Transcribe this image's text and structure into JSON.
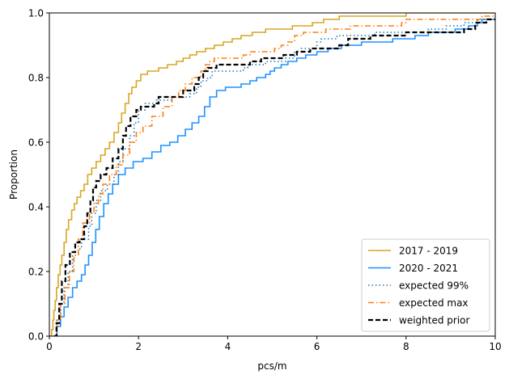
{
  "chart_data": {
    "type": "line",
    "subtype": "ecdf-step",
    "xlabel": "pcs/m",
    "ylabel": "Proportion",
    "xlim": [
      0,
      10
    ],
    "ylim": [
      0,
      1
    ],
    "xticks": [
      "0",
      "2",
      "4",
      "6",
      "8",
      "10"
    ],
    "xtick_values": [
      0,
      2,
      4,
      6,
      8,
      10
    ],
    "yticks": [
      "0.0",
      "0.2",
      "0.4",
      "0.6",
      "0.8",
      "1.0"
    ],
    "ytick_values": [
      0,
      0.2,
      0.4,
      0.6,
      0.8,
      1.0
    ],
    "grid": false,
    "legend_position": "lower-right",
    "series": [
      {
        "name": "2017 - 2019",
        "color": "#DAA520",
        "dash": "solid",
        "width": 1.6,
        "points": [
          [
            0.0,
            0.0
          ],
          [
            0.05,
            0.02
          ],
          [
            0.08,
            0.05
          ],
          [
            0.1,
            0.08
          ],
          [
            0.13,
            0.11
          ],
          [
            0.16,
            0.15
          ],
          [
            0.2,
            0.19
          ],
          [
            0.24,
            0.22
          ],
          [
            0.28,
            0.25
          ],
          [
            0.33,
            0.29
          ],
          [
            0.38,
            0.33
          ],
          [
            0.43,
            0.36
          ],
          [
            0.5,
            0.39
          ],
          [
            0.56,
            0.41
          ],
          [
            0.62,
            0.43
          ],
          [
            0.7,
            0.45
          ],
          [
            0.78,
            0.47
          ],
          [
            0.86,
            0.5
          ],
          [
            0.95,
            0.52
          ],
          [
            1.05,
            0.54
          ],
          [
            1.15,
            0.56
          ],
          [
            1.25,
            0.58
          ],
          [
            1.35,
            0.6
          ],
          [
            1.45,
            0.63
          ],
          [
            1.55,
            0.66
          ],
          [
            1.62,
            0.69
          ],
          [
            1.7,
            0.72
          ],
          [
            1.78,
            0.75
          ],
          [
            1.85,
            0.77
          ],
          [
            1.95,
            0.79
          ],
          [
            2.05,
            0.81
          ],
          [
            2.2,
            0.82
          ],
          [
            2.45,
            0.83
          ],
          [
            2.65,
            0.84
          ],
          [
            2.85,
            0.85
          ],
          [
            3.0,
            0.86
          ],
          [
            3.15,
            0.87
          ],
          [
            3.3,
            0.88
          ],
          [
            3.5,
            0.89
          ],
          [
            3.7,
            0.9
          ],
          [
            3.9,
            0.91
          ],
          [
            4.1,
            0.92
          ],
          [
            4.3,
            0.93
          ],
          [
            4.55,
            0.94
          ],
          [
            4.85,
            0.95
          ],
          [
            5.45,
            0.96
          ],
          [
            5.9,
            0.97
          ],
          [
            6.15,
            0.98
          ],
          [
            6.5,
            0.99
          ],
          [
            7.9,
            0.99
          ],
          [
            8.0,
            1.0
          ],
          [
            10.0,
            1.0
          ]
        ]
      },
      {
        "name": "2020 - 2021",
        "color": "#1E90FF",
        "dash": "solid",
        "width": 1.6,
        "points": [
          [
            0.1,
            0.0
          ],
          [
            0.17,
            0.03
          ],
          [
            0.25,
            0.06
          ],
          [
            0.33,
            0.09
          ],
          [
            0.42,
            0.12
          ],
          [
            0.52,
            0.15
          ],
          [
            0.62,
            0.17
          ],
          [
            0.72,
            0.19
          ],
          [
            0.8,
            0.22
          ],
          [
            0.88,
            0.25
          ],
          [
            0.96,
            0.29
          ],
          [
            1.04,
            0.33
          ],
          [
            1.12,
            0.37
          ],
          [
            1.22,
            0.41
          ],
          [
            1.32,
            0.44
          ],
          [
            1.42,
            0.47
          ],
          [
            1.55,
            0.5
          ],
          [
            1.7,
            0.52
          ],
          [
            1.88,
            0.54
          ],
          [
            2.1,
            0.55
          ],
          [
            2.3,
            0.57
          ],
          [
            2.5,
            0.59
          ],
          [
            2.7,
            0.6
          ],
          [
            2.88,
            0.62
          ],
          [
            3.05,
            0.64
          ],
          [
            3.2,
            0.66
          ],
          [
            3.35,
            0.68
          ],
          [
            3.48,
            0.71
          ],
          [
            3.6,
            0.74
          ],
          [
            3.75,
            0.76
          ],
          [
            3.95,
            0.77
          ],
          [
            4.3,
            0.78
          ],
          [
            4.5,
            0.79
          ],
          [
            4.65,
            0.8
          ],
          [
            4.85,
            0.81
          ],
          [
            4.95,
            0.82
          ],
          [
            5.05,
            0.83
          ],
          [
            5.2,
            0.84
          ],
          [
            5.35,
            0.85
          ],
          [
            5.55,
            0.86
          ],
          [
            5.75,
            0.87
          ],
          [
            6.0,
            0.88
          ],
          [
            6.25,
            0.89
          ],
          [
            6.55,
            0.9
          ],
          [
            7.0,
            0.91
          ],
          [
            7.7,
            0.92
          ],
          [
            8.2,
            0.93
          ],
          [
            8.5,
            0.94
          ],
          [
            9.1,
            0.95
          ],
          [
            9.4,
            0.96
          ],
          [
            9.6,
            0.97
          ],
          [
            9.7,
            0.98
          ],
          [
            10.0,
            0.98
          ]
        ]
      },
      {
        "name": "expected 99%",
        "color": "#1F77B4",
        "dash": "dotted",
        "width": 1.6,
        "points": [
          [
            0.1,
            0.0
          ],
          [
            0.17,
            0.05
          ],
          [
            0.25,
            0.1
          ],
          [
            0.33,
            0.15
          ],
          [
            0.42,
            0.2
          ],
          [
            0.52,
            0.25
          ],
          [
            0.65,
            0.27
          ],
          [
            0.72,
            0.3
          ],
          [
            0.88,
            0.34
          ],
          [
            0.95,
            0.38
          ],
          [
            1.05,
            0.42
          ],
          [
            1.15,
            0.45
          ],
          [
            1.3,
            0.47
          ],
          [
            1.45,
            0.5
          ],
          [
            1.55,
            0.54
          ],
          [
            1.65,
            0.58
          ],
          [
            1.8,
            0.62
          ],
          [
            1.9,
            0.66
          ],
          [
            2.0,
            0.7
          ],
          [
            2.15,
            0.72
          ],
          [
            2.4,
            0.73
          ],
          [
            2.75,
            0.74
          ],
          [
            3.15,
            0.75
          ],
          [
            3.3,
            0.77
          ],
          [
            3.4,
            0.79
          ],
          [
            3.55,
            0.8
          ],
          [
            3.65,
            0.82
          ],
          [
            4.3,
            0.82
          ],
          [
            4.35,
            0.83
          ],
          [
            4.45,
            0.84
          ],
          [
            4.85,
            0.85
          ],
          [
            5.3,
            0.86
          ],
          [
            5.5,
            0.88
          ],
          [
            5.65,
            0.89
          ],
          [
            6.0,
            0.91
          ],
          [
            6.1,
            0.92
          ],
          [
            6.45,
            0.93
          ],
          [
            7.05,
            0.93
          ],
          [
            7.3,
            0.94
          ],
          [
            8.0,
            0.94
          ],
          [
            8.5,
            0.95
          ],
          [
            8.9,
            0.96
          ],
          [
            9.3,
            0.97
          ],
          [
            9.6,
            0.98
          ],
          [
            10.0,
            0.98
          ]
        ]
      },
      {
        "name": "expected max",
        "color": "#FF7F0E",
        "dash": "dashdot",
        "width": 1.6,
        "points": [
          [
            0.1,
            0.0
          ],
          [
            0.17,
            0.05
          ],
          [
            0.25,
            0.1
          ],
          [
            0.35,
            0.15
          ],
          [
            0.45,
            0.2
          ],
          [
            0.55,
            0.25
          ],
          [
            0.65,
            0.3
          ],
          [
            0.75,
            0.35
          ],
          [
            0.9,
            0.38
          ],
          [
            1.0,
            0.41
          ],
          [
            1.1,
            0.44
          ],
          [
            1.2,
            0.47
          ],
          [
            1.35,
            0.5
          ],
          [
            1.5,
            0.53
          ],
          [
            1.65,
            0.56
          ],
          [
            1.8,
            0.6
          ],
          [
            1.95,
            0.63
          ],
          [
            2.1,
            0.65
          ],
          [
            2.3,
            0.68
          ],
          [
            2.55,
            0.71
          ],
          [
            2.75,
            0.74
          ],
          [
            2.9,
            0.76
          ],
          [
            3.05,
            0.78
          ],
          [
            3.2,
            0.8
          ],
          [
            3.4,
            0.82
          ],
          [
            3.5,
            0.84
          ],
          [
            3.6,
            0.85
          ],
          [
            3.7,
            0.86
          ],
          [
            4.1,
            0.86
          ],
          [
            4.35,
            0.87
          ],
          [
            4.5,
            0.88
          ],
          [
            4.9,
            0.88
          ],
          [
            5.05,
            0.89
          ],
          [
            5.2,
            0.9
          ],
          [
            5.35,
            0.91
          ],
          [
            5.5,
            0.93
          ],
          [
            5.7,
            0.94
          ],
          [
            6.2,
            0.95
          ],
          [
            6.75,
            0.96
          ],
          [
            7.0,
            0.96
          ],
          [
            7.9,
            0.97
          ],
          [
            8.0,
            0.98
          ],
          [
            9.7,
            0.99
          ],
          [
            10.0,
            0.99
          ]
        ]
      },
      {
        "name": "weighted prior",
        "color": "#000000",
        "dash": "dashed",
        "width": 2.2,
        "points": [
          [
            0.1,
            0.0
          ],
          [
            0.16,
            0.04
          ],
          [
            0.22,
            0.1
          ],
          [
            0.28,
            0.17
          ],
          [
            0.36,
            0.22
          ],
          [
            0.46,
            0.26
          ],
          [
            0.58,
            0.29
          ],
          [
            0.68,
            0.3
          ],
          [
            0.78,
            0.34
          ],
          [
            0.85,
            0.38
          ],
          [
            0.92,
            0.42
          ],
          [
            0.98,
            0.46
          ],
          [
            1.05,
            0.48
          ],
          [
            1.15,
            0.5
          ],
          [
            1.28,
            0.52
          ],
          [
            1.42,
            0.55
          ],
          [
            1.55,
            0.58
          ],
          [
            1.65,
            0.62
          ],
          [
            1.72,
            0.65
          ],
          [
            1.82,
            0.68
          ],
          [
            1.95,
            0.7
          ],
          [
            2.05,
            0.71
          ],
          [
            2.35,
            0.72
          ],
          [
            2.45,
            0.74
          ],
          [
            2.85,
            0.74
          ],
          [
            3.0,
            0.76
          ],
          [
            3.25,
            0.78
          ],
          [
            3.35,
            0.8
          ],
          [
            3.45,
            0.82
          ],
          [
            3.55,
            0.83
          ],
          [
            3.75,
            0.84
          ],
          [
            4.1,
            0.84
          ],
          [
            4.5,
            0.85
          ],
          [
            4.75,
            0.86
          ],
          [
            5.25,
            0.87
          ],
          [
            5.55,
            0.88
          ],
          [
            5.85,
            0.89
          ],
          [
            6.5,
            0.9
          ],
          [
            6.7,
            0.92
          ],
          [
            7.2,
            0.93
          ],
          [
            8.0,
            0.94
          ],
          [
            9.3,
            0.95
          ],
          [
            9.55,
            0.97
          ],
          [
            9.8,
            0.98
          ],
          [
            10.0,
            0.98
          ]
        ]
      }
    ]
  }
}
